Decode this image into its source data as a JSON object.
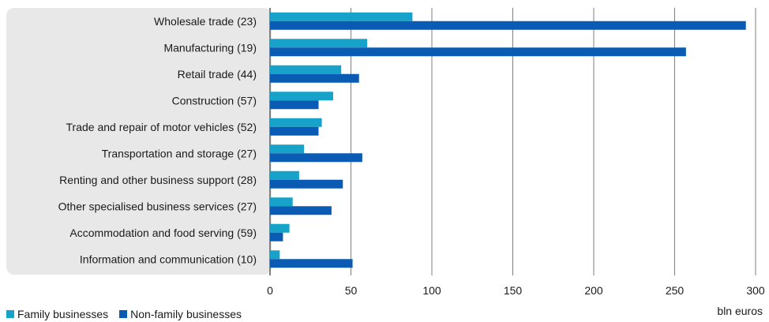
{
  "chart_data": {
    "type": "bar",
    "orientation": "horizontal",
    "categories": [
      "Wholesale trade (23)",
      "Manufacturing (19)",
      "Retail trade (44)",
      "Construction (57)",
      "Trade and repair of motor vehicles (52)",
      "Transportation and storage (27)",
      "Renting and other business support (28)",
      "Other specialised business services (27)",
      "Accommodation and food serving (59)",
      "Information and communication (10)"
    ],
    "series": [
      {
        "name": "Family businesses",
        "color": "#17a2c9",
        "values": [
          88,
          60,
          44,
          39,
          32,
          21,
          18,
          14,
          12,
          6
        ]
      },
      {
        "name": "Non-family businesses",
        "color": "#0a5bb3",
        "values": [
          294,
          257,
          55,
          30,
          30,
          57,
          45,
          38,
          8,
          51
        ]
      }
    ],
    "xlim": [
      0,
      300
    ],
    "xticks": [
      "0",
      "50",
      "100",
      "150",
      "200",
      "250",
      "300"
    ],
    "xlabel": "bln euros",
    "grid": true,
    "legend_position": "bottom-left",
    "label_panel_color": "#e8e8e8",
    "gridline_color": "#7f7f7f"
  }
}
